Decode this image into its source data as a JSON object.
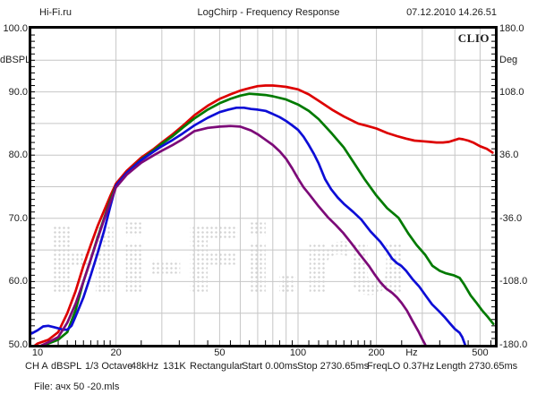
{
  "header": {
    "site": "Hi-Fi.ru",
    "title": "LogChirp - Frequency Response",
    "datetime": "07.12.2010 14.26.51"
  },
  "chart": {
    "brand": "CLIO",
    "watermark": "Hi-Fi.ru",
    "left_axis": {
      "unit": "dBSPL",
      "ticks": [
        {
          "label": "100.0",
          "value": 100
        },
        {
          "label": "90.0",
          "value": 90
        },
        {
          "label": "80.0",
          "value": 80
        },
        {
          "label": "70.0",
          "value": 70
        },
        {
          "label": "60.0",
          "value": 60
        },
        {
          "label": "50.0",
          "value": 50
        }
      ]
    },
    "right_axis": {
      "unit": "Deg",
      "ticks": [
        {
          "label": "180.0",
          "value": 180
        },
        {
          "label": "108.0",
          "value": 108
        },
        {
          "label": "36.0",
          "value": 36
        },
        {
          "label": "-36.0",
          "value": -36
        },
        {
          "label": "-108.0",
          "value": -108
        },
        {
          "label": "-180.0",
          "value": -180
        }
      ]
    },
    "x_axis": {
      "unit": "Hz",
      "unit_position": 273,
      "ticks": [
        {
          "label": "10",
          "value": 10
        },
        {
          "label": "20",
          "value": 20
        },
        {
          "label": "50",
          "value": 50
        },
        {
          "label": "100",
          "value": 100
        },
        {
          "label": "200",
          "value": 200
        },
        {
          "label": "500",
          "value": 500
        }
      ]
    }
  },
  "chart_data": {
    "type": "line",
    "title": "LogChirp - Frequency Response",
    "xlabel": "Hz",
    "ylabel": "dBSPL",
    "ylabel_right": "Deg",
    "xscale": "log",
    "xlim": [
      9.5,
      570
    ],
    "ylim": [
      50,
      100
    ],
    "ylim_right": [
      -180,
      180
    ],
    "grid": true,
    "legend": "none",
    "series": [
      {
        "name": "red",
        "color": "#dd0000",
        "points": [
          [
            9.5,
            49.5
          ],
          [
            10,
            50.2
          ],
          [
            11,
            50.8
          ],
          [
            12,
            52
          ],
          [
            13,
            55
          ],
          [
            14,
            58.5
          ],
          [
            15,
            62.5
          ],
          [
            16,
            65.8
          ],
          [
            17,
            68.8
          ],
          [
            18,
            71.2
          ],
          [
            19,
            73.5
          ],
          [
            20,
            75.5
          ],
          [
            22,
            77.5
          ],
          [
            25,
            79.6
          ],
          [
            28,
            81
          ],
          [
            30,
            82
          ],
          [
            33,
            83.3
          ],
          [
            36,
            84.6
          ],
          [
            40,
            86.3
          ],
          [
            45,
            87.8
          ],
          [
            50,
            88.9
          ],
          [
            55,
            89.6
          ],
          [
            60,
            90.2
          ],
          [
            65,
            90.6
          ],
          [
            70,
            90.9
          ],
          [
            75,
            91
          ],
          [
            80,
            91
          ],
          [
            85,
            90.9
          ],
          [
            90,
            90.8
          ],
          [
            100,
            90.4
          ],
          [
            110,
            89.6
          ],
          [
            120,
            88.6
          ],
          [
            135,
            87.2
          ],
          [
            150,
            86.1
          ],
          [
            170,
            85
          ],
          [
            185,
            84.6
          ],
          [
            200,
            84.2
          ],
          [
            220,
            83.5
          ],
          [
            240,
            83
          ],
          [
            260,
            82.6
          ],
          [
            280,
            82.3
          ],
          [
            300,
            82.2
          ],
          [
            320,
            82.1
          ],
          [
            340,
            82
          ],
          [
            360,
            82
          ],
          [
            380,
            82.1
          ],
          [
            400,
            82.4
          ],
          [
            415,
            82.6
          ],
          [
            430,
            82.5
          ],
          [
            450,
            82.3
          ],
          [
            470,
            82
          ],
          [
            500,
            81.4
          ],
          [
            530,
            81
          ],
          [
            558,
            80.4
          ]
        ]
      },
      {
        "name": "green",
        "color": "#007a00",
        "points": [
          [
            10,
            49.5
          ],
          [
            11,
            50.2
          ],
          [
            12,
            50.8
          ],
          [
            13,
            52
          ],
          [
            14,
            55.5
          ],
          [
            15,
            60
          ],
          [
            16,
            63.5
          ],
          [
            17,
            67
          ],
          [
            18,
            70
          ],
          [
            19,
            72.8
          ],
          [
            20,
            75.2
          ],
          [
            22,
            77.2
          ],
          [
            25,
            79.3
          ],
          [
            28,
            80.8
          ],
          [
            30,
            81.8
          ],
          [
            33,
            83
          ],
          [
            36,
            84.3
          ],
          [
            40,
            85.8
          ],
          [
            45,
            87.2
          ],
          [
            50,
            88.2
          ],
          [
            55,
            88.9
          ],
          [
            60,
            89.4
          ],
          [
            65,
            89.7
          ],
          [
            70,
            89.6
          ],
          [
            75,
            89.5
          ],
          [
            80,
            89.3
          ],
          [
            90,
            88.8
          ],
          [
            100,
            88
          ],
          [
            110,
            87
          ],
          [
            120,
            85.7
          ],
          [
            135,
            83.4
          ],
          [
            150,
            81.2
          ],
          [
            165,
            78.6
          ],
          [
            180,
            76.2
          ],
          [
            200,
            73.6
          ],
          [
            220,
            71.6
          ],
          [
            243,
            70.1
          ],
          [
            265,
            67.6
          ],
          [
            285,
            65.8
          ],
          [
            308,
            64.2
          ],
          [
            328,
            62.5
          ],
          [
            350,
            61.7
          ],
          [
            370,
            61.3
          ],
          [
            395,
            61
          ],
          [
            417,
            60.6
          ],
          [
            435,
            59.5
          ],
          [
            460,
            57.8
          ],
          [
            485,
            56.6
          ],
          [
            510,
            55.4
          ],
          [
            535,
            54.4
          ],
          [
            562,
            53.3
          ]
        ]
      },
      {
        "name": "blue",
        "color": "#0d0dd6",
        "points": [
          [
            9.5,
            51.8
          ],
          [
            10,
            52.3
          ],
          [
            10.5,
            52.9
          ],
          [
            11,
            53
          ],
          [
            11.5,
            52.8
          ],
          [
            12,
            52.6
          ],
          [
            12.5,
            52.4
          ],
          [
            13,
            52.4
          ],
          [
            13.5,
            53
          ],
          [
            14,
            54.5
          ],
          [
            15,
            57.5
          ],
          [
            16,
            61
          ],
          [
            17,
            64.5
          ],
          [
            18,
            68
          ],
          [
            19,
            71.8
          ],
          [
            20,
            75.2
          ],
          [
            22,
            77.2
          ],
          [
            25,
            79.2
          ],
          [
            28,
            80.6
          ],
          [
            30,
            81.4
          ],
          [
            33,
            82.4
          ],
          [
            36,
            83.4
          ],
          [
            40,
            84.7
          ],
          [
            45,
            85.9
          ],
          [
            50,
            86.8
          ],
          [
            54,
            87.2
          ],
          [
            58,
            87.5
          ],
          [
            62,
            87.5
          ],
          [
            66,
            87.3
          ],
          [
            70,
            87.2
          ],
          [
            75,
            87
          ],
          [
            80,
            86.5
          ],
          [
            85,
            86
          ],
          [
            90,
            85.4
          ],
          [
            95,
            84.7
          ],
          [
            100,
            84
          ],
          [
            105,
            82.9
          ],
          [
            110,
            81.6
          ],
          [
            115,
            80.2
          ],
          [
            120,
            78.7
          ],
          [
            127,
            76.2
          ],
          [
            134,
            74.6
          ],
          [
            142,
            73.3
          ],
          [
            150,
            72.3
          ],
          [
            163,
            71
          ],
          [
            175,
            69.8
          ],
          [
            190,
            67.9
          ],
          [
            207,
            66.3
          ],
          [
            220,
            64.8
          ],
          [
            230,
            63.6
          ],
          [
            240,
            62.9
          ],
          [
            249,
            62.5
          ],
          [
            260,
            61.7
          ],
          [
            275,
            60.4
          ],
          [
            292,
            59.2
          ],
          [
            310,
            57.7
          ],
          [
            327,
            56.4
          ],
          [
            350,
            55.2
          ],
          [
            365,
            54.4
          ],
          [
            381,
            53.5
          ],
          [
            400,
            52.5
          ],
          [
            417,
            51.9
          ],
          [
            427,
            51.2
          ],
          [
            437,
            50.1
          ],
          [
            442,
            49.5
          ]
        ]
      },
      {
        "name": "purple",
        "color": "#7c0a78",
        "points": [
          [
            10,
            49.6
          ],
          [
            11,
            50.4
          ],
          [
            12,
            51.2
          ],
          [
            13,
            53.5
          ],
          [
            14,
            56.5
          ],
          [
            15,
            60
          ],
          [
            16,
            63.5
          ],
          [
            17,
            66.8
          ],
          [
            18,
            69.8
          ],
          [
            19,
            72.5
          ],
          [
            20,
            74.9
          ],
          [
            22,
            76.9
          ],
          [
            25,
            78.8
          ],
          [
            28,
            80
          ],
          [
            30,
            80.7
          ],
          [
            33,
            81.6
          ],
          [
            36,
            82.5
          ],
          [
            40,
            83.8
          ],
          [
            45,
            84.3
          ],
          [
            50,
            84.5
          ],
          [
            55,
            84.6
          ],
          [
            60,
            84.5
          ],
          [
            66,
            83.9
          ],
          [
            70,
            83.3
          ],
          [
            74,
            82.6
          ],
          [
            80,
            81.6
          ],
          [
            85,
            80.6
          ],
          [
            90,
            79.4
          ],
          [
            95,
            77.9
          ],
          [
            100,
            76.3
          ],
          [
            105,
            74.9
          ],
          [
            110,
            73.9
          ],
          [
            120,
            71.9
          ],
          [
            130,
            70.2
          ],
          [
            140,
            68.9
          ],
          [
            149,
            67.7
          ],
          [
            160,
            66.1
          ],
          [
            172,
            64.4
          ],
          [
            187,
            62.5
          ],
          [
            197,
            61.1
          ],
          [
            207,
            59.9
          ],
          [
            218,
            58.9
          ],
          [
            230,
            58.2
          ],
          [
            240,
            57.5
          ],
          [
            250,
            56.6
          ],
          [
            262,
            55.4
          ],
          [
            275,
            53.8
          ],
          [
            290,
            52.1
          ],
          [
            300,
            50.9
          ],
          [
            308,
            50
          ],
          [
            312,
            49.5
          ]
        ]
      }
    ]
  },
  "status_bar": {
    "items": [
      "CH A",
      "dBSPL",
      "1/3 Octave",
      "48kHz",
      "131K",
      "Rectangular",
      "Start 0.00ms",
      "Stop 2730.65ms",
      "FreqLO 0.37Hz",
      "Length 2730.65ms"
    ]
  },
  "file_line": "File: ачх 50 -20.mls"
}
